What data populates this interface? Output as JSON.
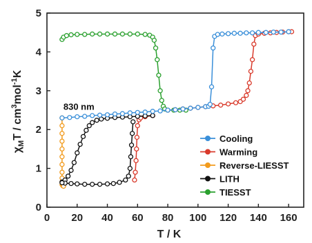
{
  "chart_data": {
    "type": "scatter",
    "xlabel": "T / K",
    "ylabel_parts": {
      "chi": "χ",
      "sub": "M",
      "mid": "T / cm",
      "sup1": "3",
      "mol": "mol",
      "sup2": "-1",
      "end": "K"
    },
    "xlim": [
      0,
      170
    ],
    "ylim": [
      0,
      5
    ],
    "xticks": [
      0,
      20,
      40,
      60,
      80,
      100,
      120,
      140,
      160
    ],
    "yticks": [
      0,
      1,
      2,
      3,
      4,
      5
    ],
    "legend_position": "bottom-right",
    "annotation": {
      "text": "830 nm",
      "x": 10,
      "y": 2.6
    },
    "series": [
      {
        "name": "Cooling",
        "color": "#3a8fd9",
        "points": [
          [
            10,
            2.3
          ],
          [
            15,
            2.31
          ],
          [
            20,
            2.33
          ],
          [
            25,
            2.34
          ],
          [
            30,
            2.36
          ],
          [
            35,
            2.37
          ],
          [
            40,
            2.38
          ],
          [
            45,
            2.4
          ],
          [
            50,
            2.41
          ],
          [
            55,
            2.43
          ],
          [
            60,
            2.44
          ],
          [
            65,
            2.45
          ],
          [
            70,
            2.47
          ],
          [
            75,
            2.48
          ],
          [
            80,
            2.5
          ],
          [
            85,
            2.51
          ],
          [
            90,
            2.53
          ],
          [
            95,
            2.55
          ],
          [
            100,
            2.57
          ],
          [
            105,
            2.59
          ],
          [
            107,
            2.6
          ],
          [
            108,
            2.65
          ],
          [
            109,
            3.1
          ],
          [
            110,
            4.1
          ],
          [
            111,
            4.4
          ],
          [
            113,
            4.45
          ],
          [
            116,
            4.46
          ],
          [
            120,
            4.47
          ],
          [
            124,
            4.48
          ],
          [
            128,
            4.48
          ],
          [
            132,
            4.49
          ],
          [
            136,
            4.49
          ],
          [
            140,
            4.5
          ],
          [
            145,
            4.5
          ],
          [
            150,
            4.51
          ],
          [
            155,
            4.51
          ],
          [
            160,
            4.52
          ]
        ]
      },
      {
        "name": "Warming",
        "color": "#d93a2b",
        "points": [
          [
            80,
            2.5
          ],
          [
            85,
            2.51
          ],
          [
            90,
            2.53
          ],
          [
            95,
            2.55
          ],
          [
            100,
            2.57
          ],
          [
            105,
            2.59
          ],
          [
            110,
            2.61
          ],
          [
            115,
            2.63
          ],
          [
            120,
            2.66
          ],
          [
            125,
            2.69
          ],
          [
            128,
            2.72
          ],
          [
            130,
            2.78
          ],
          [
            132,
            2.88
          ],
          [
            133,
            3.0
          ],
          [
            134,
            3.2
          ],
          [
            135,
            3.5
          ],
          [
            136,
            3.8
          ],
          [
            137,
            4.2
          ],
          [
            138,
            4.42
          ],
          [
            140,
            4.46
          ],
          [
            144,
            4.48
          ],
          [
            148,
            4.49
          ],
          [
            152,
            4.5
          ],
          [
            156,
            4.51
          ],
          [
            160,
            4.52
          ],
          [
            162,
            4.52
          ]
        ]
      },
      {
        "name": "Reverse-LIESST",
        "color": "#f29b1d",
        "points": [
          [
            10,
            2.3
          ],
          [
            10,
            2.1
          ],
          [
            10,
            1.9
          ],
          [
            10,
            1.7
          ],
          [
            10,
            1.5
          ],
          [
            10,
            1.3
          ],
          [
            10,
            1.1
          ],
          [
            10,
            0.9
          ],
          [
            10,
            0.75
          ],
          [
            10,
            0.65
          ],
          [
            10,
            0.58
          ],
          [
            10.5,
            0.55
          ],
          [
            11,
            0.54
          ]
        ]
      },
      {
        "name": "LITH",
        "color": "#111111",
        "points": [
          [
            10,
            0.65
          ],
          [
            12,
            0.7
          ],
          [
            14,
            0.8
          ],
          [
            16,
            0.95
          ],
          [
            18,
            1.15
          ],
          [
            20,
            1.4
          ],
          [
            22,
            1.62
          ],
          [
            24,
            1.82
          ],
          [
            26,
            1.98
          ],
          [
            28,
            2.1
          ],
          [
            30,
            2.18
          ],
          [
            33,
            2.24
          ],
          [
            36,
            2.27
          ],
          [
            40,
            2.29
          ],
          [
            45,
            2.31
          ],
          [
            50,
            2.32
          ],
          [
            55,
            2.33
          ],
          [
            60,
            2.34
          ],
          [
            65,
            2.35
          ],
          [
            70,
            2.36
          ],
          [
            57,
            2.2
          ],
          [
            56.5,
            1.9
          ],
          [
            56,
            1.6
          ],
          [
            55.5,
            1.3
          ],
          [
            55,
            1.0
          ],
          [
            54,
            0.8
          ],
          [
            52,
            0.7
          ],
          [
            48,
            0.64
          ],
          [
            44,
            0.61
          ],
          [
            40,
            0.6
          ],
          [
            35,
            0.59
          ],
          [
            30,
            0.59
          ],
          [
            25,
            0.59
          ],
          [
            20,
            0.6
          ],
          [
            16,
            0.61
          ],
          [
            12,
            0.62
          ],
          [
            10,
            0.63
          ]
        ]
      },
      {
        "name": "TIESST",
        "color": "#2aa02e",
        "points": [
          [
            10,
            4.32
          ],
          [
            11,
            4.38
          ],
          [
            13,
            4.42
          ],
          [
            16,
            4.44
          ],
          [
            20,
            4.45
          ],
          [
            25,
            4.45
          ],
          [
            30,
            4.46
          ],
          [
            35,
            4.46
          ],
          [
            40,
            4.46
          ],
          [
            45,
            4.46
          ],
          [
            50,
            4.46
          ],
          [
            55,
            4.46
          ],
          [
            60,
            4.46
          ],
          [
            65,
            4.45
          ],
          [
            68,
            4.43
          ],
          [
            70,
            4.38
          ],
          [
            71,
            4.3
          ],
          [
            72,
            4.1
          ],
          [
            73,
            3.8
          ],
          [
            74,
            3.4
          ],
          [
            75,
            3.0
          ],
          [
            76,
            2.75
          ],
          [
            77,
            2.6
          ],
          [
            78,
            2.53
          ],
          [
            80,
            2.5
          ],
          [
            84,
            2.5
          ],
          [
            88,
            2.5
          ],
          [
            92,
            2.5
          ]
        ]
      }
    ],
    "warming_fast_points": [
      [
        58,
        0.7
      ],
      [
        58.5,
        0.9
      ],
      [
        59,
        1.2
      ],
      [
        59.3,
        1.5
      ],
      [
        59.6,
        1.8
      ],
      [
        60,
        2.1
      ],
      [
        61,
        2.25
      ],
      [
        62,
        2.3
      ],
      [
        65,
        2.33
      ],
      [
        70,
        2.36
      ]
    ]
  }
}
